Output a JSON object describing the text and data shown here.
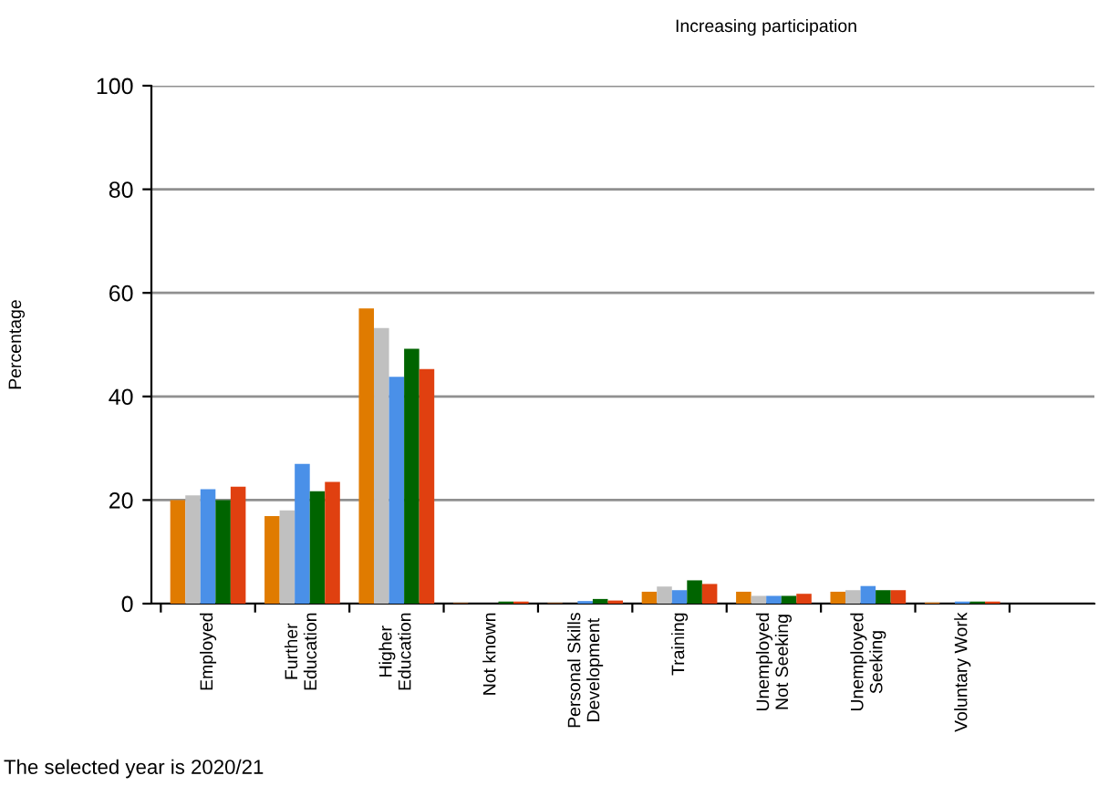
{
  "chart_data": {
    "type": "bar",
    "title": "Increasing participation",
    "ylabel": "Percentage",
    "categories": [
      "Employed",
      "Further\nEducation",
      "Higher\nEducation",
      "Not known",
      "Personal Skills\nDevelopment",
      "Training",
      "Unemployed\nNot Seeking",
      "Unemployed\nSeeking",
      "Voluntary Work"
    ],
    "series": [
      {
        "color": "#e07b00",
        "values": [
          20.0,
          16.9,
          57.0,
          0.1,
          0.1,
          2.3,
          2.3,
          2.3,
          0.2
        ]
      },
      {
        "color": "#c0c0c0",
        "values": [
          20.9,
          18.0,
          53.2,
          null,
          null,
          3.3,
          1.5,
          2.6,
          null
        ]
      },
      {
        "color": "#4a90e8",
        "values": [
          22.1,
          27.0,
          43.8,
          null,
          0.5,
          2.6,
          1.5,
          3.4,
          0.4
        ]
      },
      {
        "color": "#006400",
        "values": [
          20.0,
          21.7,
          49.2,
          0.4,
          0.9,
          4.5,
          1.5,
          2.6,
          0.4
        ]
      },
      {
        "color": "#e04010",
        "values": [
          22.6,
          23.5,
          45.3,
          0.4,
          0.6,
          3.8,
          1.9,
          2.6,
          0.4
        ]
      }
    ],
    "ylim": [
      0,
      100
    ],
    "yticks": [
      0,
      20,
      40,
      60,
      80,
      100
    ],
    "grid": "y",
    "annotations": [
      "The selected year is 2020/21"
    ]
  }
}
